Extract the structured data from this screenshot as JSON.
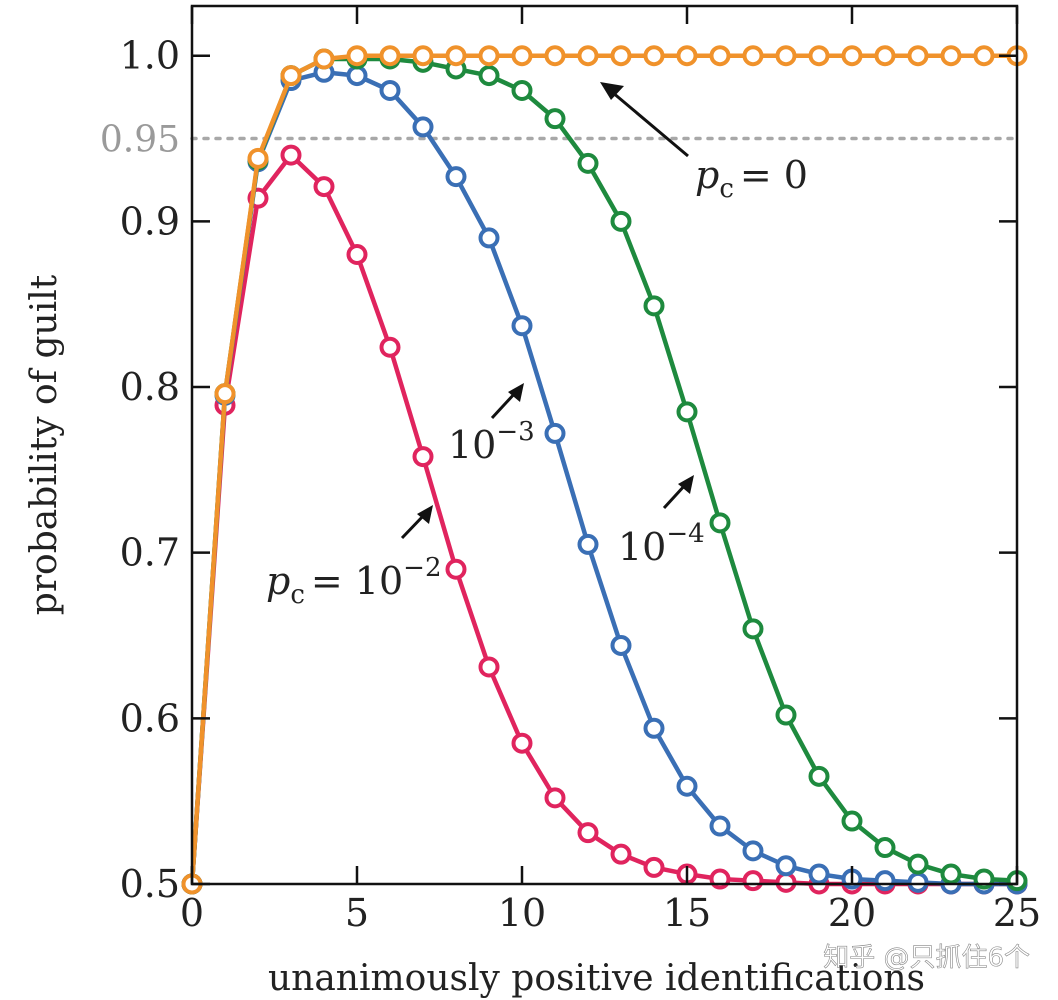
{
  "chart_data": {
    "type": "line",
    "xlabel": "unanimously positive identifications",
    "ylabel": "probability of guilt",
    "xlim": [
      0,
      25
    ],
    "ylim": [
      0.5,
      1.03
    ],
    "x_ticks": [
      0,
      5,
      10,
      15,
      20,
      25
    ],
    "x_tick_labels": [
      "0",
      "5",
      "10",
      "15",
      "20",
      "25"
    ],
    "y_ticks": [
      0.5,
      0.6,
      0.7,
      0.8,
      0.9,
      1.0
    ],
    "y_tick_labels": [
      "0.5",
      "0.6",
      "0.7",
      "0.8",
      "0.9",
      "1.0"
    ],
    "reference_line": {
      "value": 0.95,
      "label": "0.95",
      "style": "dotted",
      "color": "#a8a8a8"
    },
    "x": [
      0,
      1,
      2,
      3,
      4,
      5,
      6,
      7,
      8,
      9,
      10,
      11,
      12,
      13,
      14,
      15,
      16,
      17,
      18,
      19,
      20,
      21,
      22,
      23,
      24,
      25
    ],
    "series": [
      {
        "name": "pc = 10^-2",
        "color": "#e0245e",
        "values": [
          0.5,
          0.789,
          0.914,
          0.94,
          0.921,
          0.88,
          0.824,
          0.758,
          0.69,
          0.631,
          0.585,
          0.552,
          0.531,
          0.518,
          0.51,
          0.506,
          0.503,
          0.502,
          0.501,
          0.5,
          0.5,
          0.5,
          0.5,
          0.5,
          0.5,
          0.5
        ]
      },
      {
        "name": "pc = 10^-3",
        "color": "#3a6fb5",
        "values": [
          0.5,
          0.795,
          0.936,
          0.985,
          0.99,
          0.988,
          0.979,
          0.957,
          0.927,
          0.89,
          0.837,
          0.772,
          0.705,
          0.644,
          0.594,
          0.559,
          0.535,
          0.52,
          0.511,
          0.506,
          0.503,
          0.502,
          0.501,
          0.5,
          0.5,
          0.5
        ]
      },
      {
        "name": "pc = 10^-4",
        "color": "#1e8a3e",
        "values": [
          0.5,
          0.796,
          0.937,
          0.988,
          0.998,
          0.998,
          0.998,
          0.996,
          0.992,
          0.988,
          0.979,
          0.962,
          0.935,
          0.9,
          0.849,
          0.785,
          0.718,
          0.654,
          0.602,
          0.565,
          0.538,
          0.522,
          0.512,
          0.506,
          0.503,
          0.502
        ]
      },
      {
        "name": "pc = 0",
        "color": "#f0922b",
        "values": [
          0.5,
          0.796,
          0.938,
          0.988,
          0.998,
          1.0,
          1.0,
          1.0,
          1.0,
          1.0,
          1.0,
          1.0,
          1.0,
          1.0,
          1.0,
          1.0,
          1.0,
          1.0,
          1.0,
          1.0,
          1.0,
          1.0,
          1.0,
          1.0,
          1.0,
          1.0
        ]
      }
    ],
    "annotations": [
      {
        "id": "pc0",
        "prefix": "p",
        "sub": "c",
        "text": "= 0",
        "sup": ""
      },
      {
        "id": "e3",
        "text": "10",
        "sup": "−3"
      },
      {
        "id": "e4",
        "text": "10",
        "sup": "−4"
      },
      {
        "id": "e2",
        "prefix": "p",
        "sub": "c",
        "text": "= 10",
        "sup": "−2"
      }
    ]
  },
  "watermark": "知乎 @只抓住6个"
}
